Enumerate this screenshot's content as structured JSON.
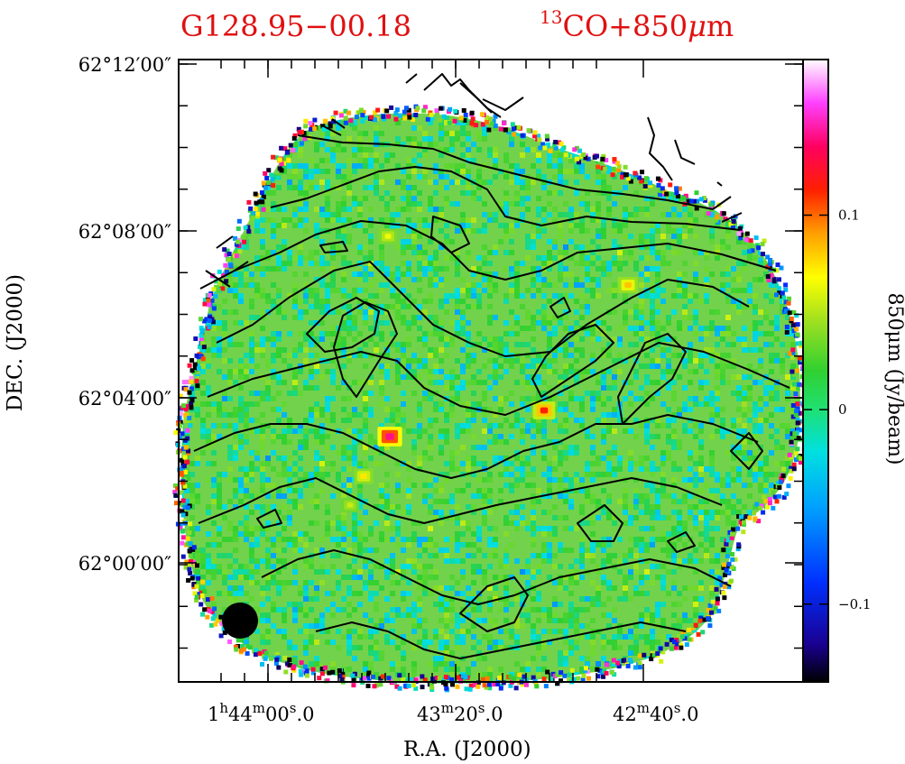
{
  "chart_data": {
    "type": "heatmap",
    "title_left": "G128.95−00.18",
    "title_right_sup": "13",
    "title_right_main": "CO+850",
    "title_right_mu": "μ",
    "title_right_unit": "m",
    "xlabel": "R.A. (J2000)",
    "ylabel": "DEC. (J2000)",
    "colorbar_label": "850μm (Jy/beam)",
    "colorbar_range": [
      -0.14,
      0.18
    ],
    "colorbar_ticks": [
      {
        "value": 0.1,
        "label": "0.1"
      },
      {
        "value": 0,
        "label": "0"
      },
      {
        "value": -0.1,
        "label": "−0.1"
      }
    ],
    "x_ticks": [
      {
        "h": "1",
        "hs": "h",
        "m": "44",
        "ms": "m",
        "s": "00",
        "ss": "s",
        "f": ".0"
      },
      {
        "h": "",
        "hs": "",
        "m": "43",
        "ms": "m",
        "s": "20",
        "ss": "s",
        "f": ".0"
      },
      {
        "h": "",
        "hs": "",
        "m": "42",
        "ms": "m",
        "s": "40",
        "ss": "s",
        "f": ".0"
      }
    ],
    "y_ticks": [
      {
        "value": "62°12′00″"
      },
      {
        "value": "62°08′00″"
      },
      {
        "value": "62°04′00″"
      },
      {
        "value": "62°00′00″"
      }
    ],
    "peaks": [
      {
        "ra_sec": 2606,
        "dec_min": 3764.5,
        "value": 0.14
      },
      {
        "ra_sec": 2582,
        "dec_min": 3724.6,
        "value": 0.11
      },
      {
        "ra_sec": 2551,
        "dec_min": 3726.2,
        "value": 0.08
      },
      {
        "ra_sec": 2614,
        "dec_min": 3727.3,
        "value": 0.06
      },
      {
        "ra_sec": 2624,
        "dec_min": 3722.2,
        "value": 0.07
      },
      {
        "ra_sec": 2602,
        "dec_min": 3728.3,
        "value": 0.05
      }
    ],
    "beam": "filled circle"
  }
}
